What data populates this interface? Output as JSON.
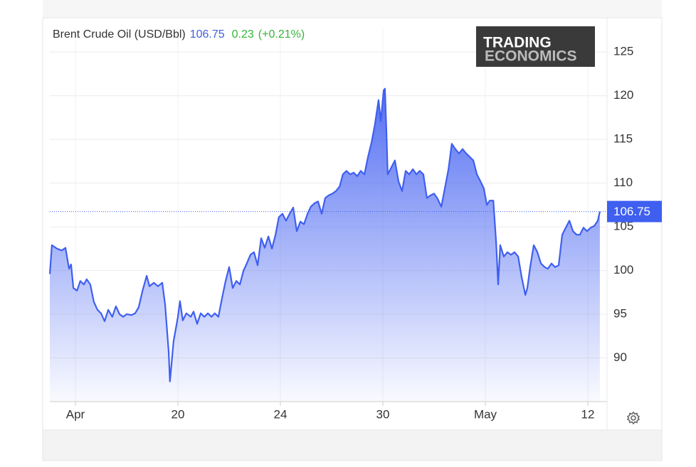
{
  "chart_data": {
    "type": "area",
    "title": "Brent Crude Oil (USD/Bbl)",
    "last_value": 106.75,
    "change": 0.23,
    "change_pct_label": "(+0.21%)",
    "logo": [
      "TRADING",
      "ECONOMICS"
    ],
    "color": "#3f5ff0",
    "grid": true,
    "xlim": [
      0,
      21.75
    ],
    "xticks": [
      {
        "value": 1,
        "label": "Apr"
      },
      {
        "value": 5,
        "label": "20"
      },
      {
        "value": 9,
        "label": "24"
      },
      {
        "value": 13,
        "label": "30"
      },
      {
        "value": 17,
        "label": "May"
      },
      {
        "value": 21,
        "label": "12"
      }
    ],
    "ylim": [
      85,
      127.7
    ],
    "yticks": [
      90,
      95,
      100,
      105,
      110,
      115,
      120,
      125
    ],
    "x": [
      0,
      0.08,
      0.28,
      0.47,
      0.61,
      0.75,
      0.83,
      0.92,
      1.06,
      1.19,
      1.33,
      1.44,
      1.58,
      1.72,
      1.86,
      2.0,
      2.14,
      2.28,
      2.44,
      2.58,
      2.72,
      2.86,
      3.0,
      3.19,
      3.33,
      3.47,
      3.61,
      3.78,
      3.89,
      4.06,
      4.22,
      4.39,
      4.5,
      4.64,
      4.69,
      4.83,
      5.0,
      5.08,
      5.19,
      5.33,
      5.5,
      5.61,
      5.75,
      5.89,
      6.03,
      6.17,
      6.31,
      6.44,
      6.58,
      6.72,
      6.86,
      7.0,
      7.14,
      7.28,
      7.42,
      7.56,
      7.69,
      7.83,
      7.97,
      8.11,
      8.25,
      8.39,
      8.53,
      8.67,
      8.81,
      8.94,
      9.08,
      9.22,
      9.36,
      9.5,
      9.64,
      9.78,
      9.92,
      10.06,
      10.19,
      10.33,
      10.47,
      10.61,
      10.75,
      10.89,
      11.03,
      11.17,
      11.31,
      11.44,
      11.58,
      11.72,
      11.86,
      12.0,
      12.14,
      12.28,
      12.42,
      12.56,
      12.69,
      12.83,
      12.92,
      13.03,
      13.08,
      13.14,
      13.19,
      13.33,
      13.47,
      13.61,
      13.75,
      13.89,
      14.03,
      14.17,
      14.31,
      14.44,
      14.58,
      14.72,
      14.86,
      15.0,
      15.14,
      15.28,
      15.42,
      15.56,
      15.69,
      15.83,
      15.97,
      16.11,
      16.25,
      16.39,
      16.53,
      16.67,
      16.81,
      16.94,
      17.06,
      17.17,
      17.31,
      17.42,
      17.5,
      17.58,
      17.72,
      17.86,
      18.0,
      18.14,
      18.28,
      18.42,
      18.56,
      18.64,
      18.75,
      18.89,
      19.03,
      19.17,
      19.31,
      19.44,
      19.58,
      19.72,
      19.86,
      20.0,
      20.14,
      20.28,
      20.42,
      20.56,
      20.69,
      20.83,
      20.97,
      21.11,
      21.25,
      21.39,
      21.47
    ],
    "values": [
      99.6,
      102.9,
      102.5,
      102.3,
      102.6,
      100.2,
      100.7,
      98.0,
      97.7,
      98.8,
      98.4,
      99.0,
      98.4,
      96.4,
      95.5,
      95.1,
      94.2,
      95.5,
      94.7,
      95.9,
      95.0,
      94.7,
      95.0,
      94.9,
      95.1,
      95.8,
      97.6,
      99.4,
      98.2,
      98.6,
      98.2,
      98.6,
      96.1,
      90.7,
      87.3,
      91.9,
      94.7,
      96.5,
      94.3,
      95.1,
      94.7,
      95.3,
      93.9,
      95.1,
      94.7,
      95.1,
      94.7,
      95.1,
      94.7,
      96.8,
      98.8,
      100.4,
      98.0,
      98.8,
      98.4,
      100.0,
      100.8,
      101.8,
      102.1,
      100.6,
      103.7,
      102.6,
      103.9,
      102.5,
      104.1,
      106.1,
      106.5,
      105.7,
      106.5,
      107.2,
      104.5,
      105.6,
      105.3,
      106.5,
      107.3,
      107.7,
      107.9,
      106.5,
      108.3,
      108.6,
      108.8,
      109.1,
      109.6,
      111.0,
      111.4,
      111.0,
      111.2,
      110.8,
      111.4,
      111.0,
      113.0,
      114.7,
      116.7,
      119.5,
      117.1,
      120.6,
      120.8,
      115.9,
      111.0,
      111.8,
      112.6,
      110.2,
      109.1,
      111.4,
      111.0,
      111.6,
      111.0,
      111.4,
      111.0,
      108.3,
      108.6,
      108.8,
      108.2,
      107.3,
      109.4,
      111.6,
      114.5,
      113.9,
      113.4,
      113.9,
      113.4,
      113.0,
      112.6,
      111.0,
      110.2,
      109.4,
      107.5,
      108.0,
      108.0,
      103.3,
      98.4,
      102.9,
      101.6,
      102.1,
      101.8,
      102.1,
      101.6,
      99.2,
      97.2,
      98.0,
      100.4,
      102.9,
      102.1,
      100.8,
      100.4,
      100.2,
      100.8,
      100.4,
      100.6,
      104.1,
      104.9,
      105.7,
      104.5,
      104.1,
      104.1,
      104.9,
      104.5,
      104.9,
      105.1,
      105.7,
      106.75
    ]
  }
}
